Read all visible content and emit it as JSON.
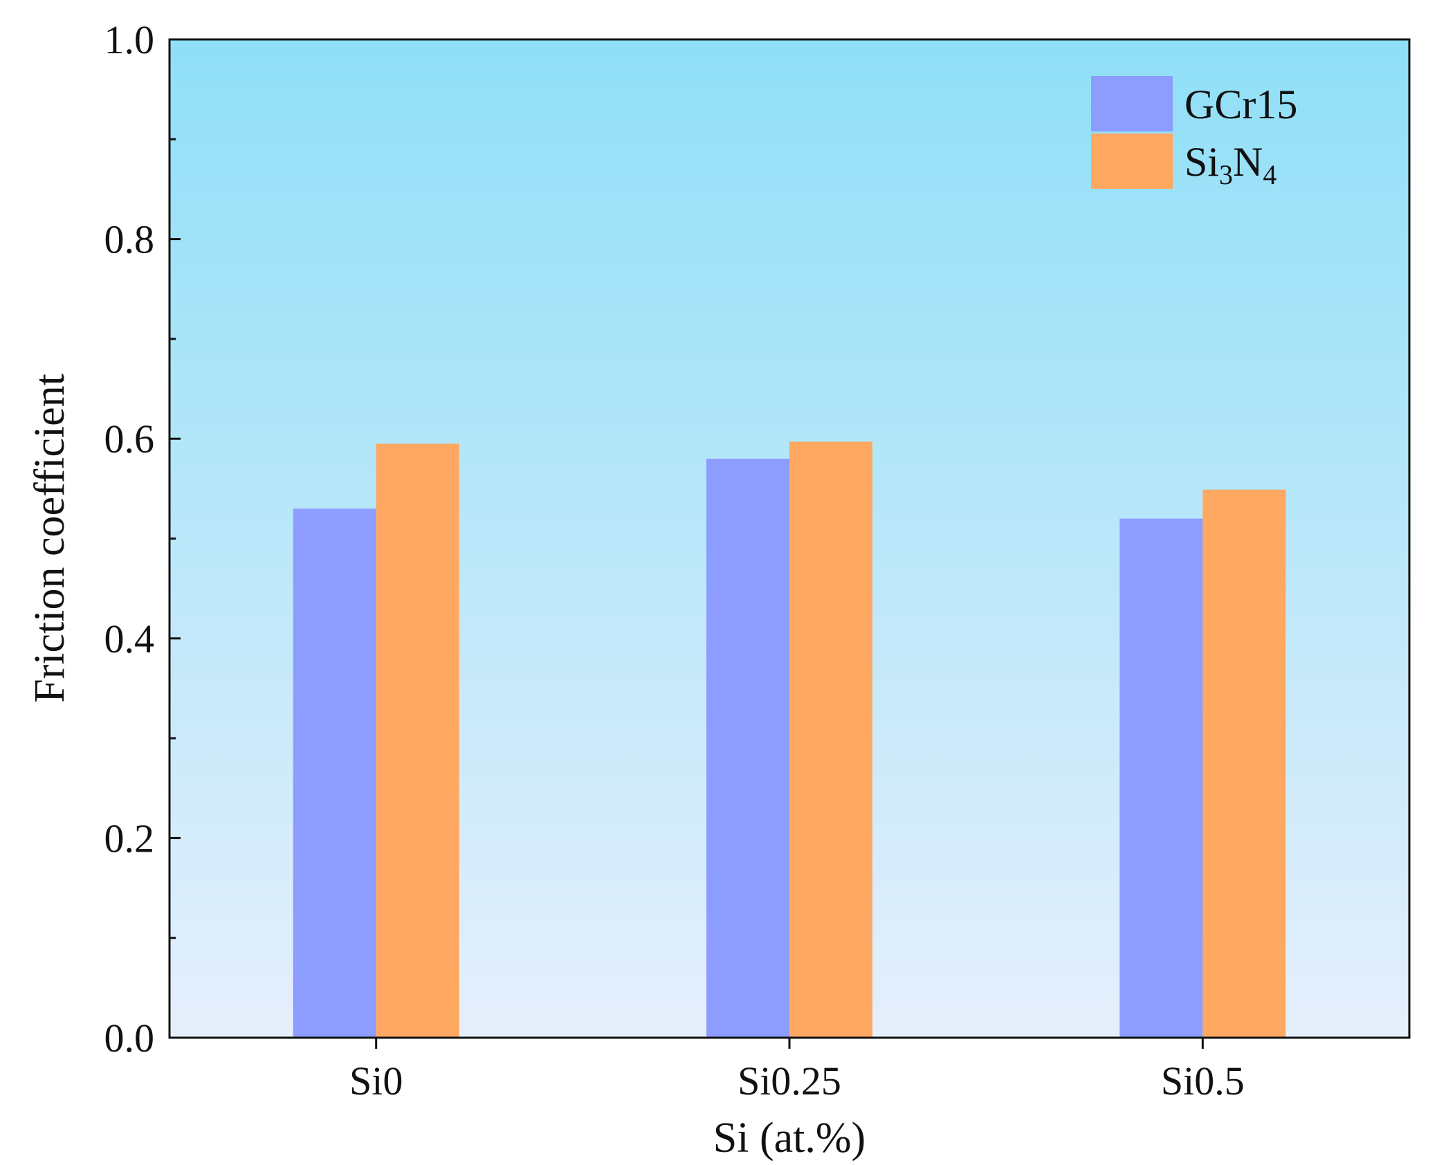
{
  "chart_data": {
    "type": "bar",
    "title": "",
    "xlabel": "Si (at.%)",
    "ylabel": "Friction coefficient",
    "categories": [
      "Si0",
      "Si0.25",
      "Si0.5"
    ],
    "series": [
      {
        "name": "GCr15",
        "values": [
          0.53,
          0.58,
          0.52
        ],
        "color": "#8c9cff"
      },
      {
        "name": "Si3N4",
        "label_parts": [
          "Si",
          "3",
          "N",
          "4"
        ],
        "values": [
          0.595,
          0.597,
          0.549
        ],
        "color": "#ffa862"
      }
    ],
    "ylim": [
      0,
      1.0
    ],
    "yticks": [
      "0.0",
      "0.2",
      "0.4",
      "0.6",
      "0.8",
      "1.0"
    ],
    "grid": false,
    "legend_position": "top-right",
    "background_gradient": [
      "#8fdff7",
      "#e6effc"
    ]
  }
}
